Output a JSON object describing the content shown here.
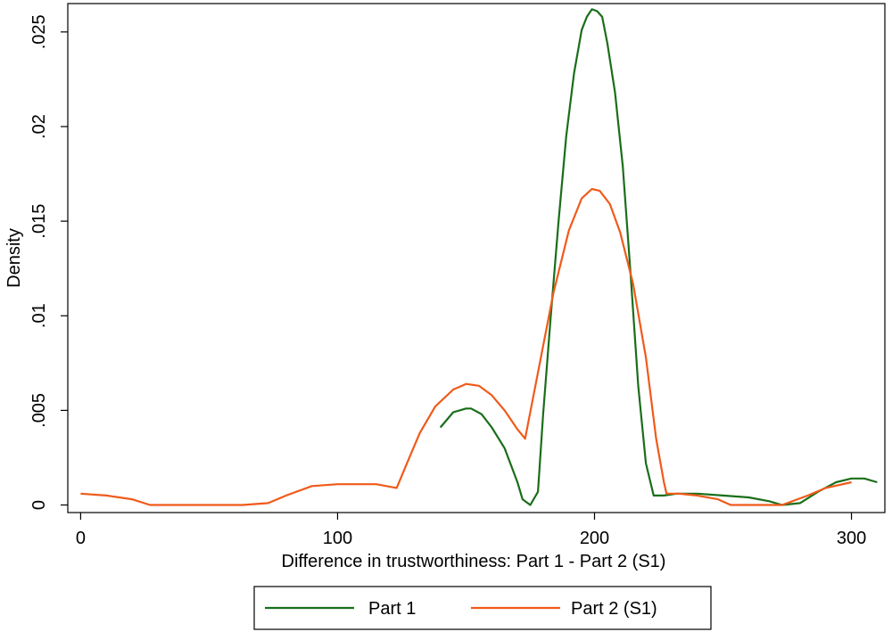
{
  "chart_data": {
    "type": "line",
    "xlabel": "Difference in trustworthiness: Part 1 - Part 2 (S1)",
    "ylabel": "Density",
    "xlim": [
      -5,
      313
    ],
    "ylim": [
      -0.0004,
      0.0265
    ],
    "x_ticks": [
      0,
      100,
      200,
      300
    ],
    "x_tick_labels": [
      "0",
      "100",
      "200",
      "300"
    ],
    "y_ticks": [
      0,
      0.005,
      0.01,
      0.015,
      0.02,
      0.025
    ],
    "y_tick_labels": [
      "0",
      ".005",
      ".01",
      ".015",
      ".02",
      ".025"
    ],
    "grid": false,
    "legend_position": "bottom",
    "series": [
      {
        "name": "Part 1",
        "color": "#1a6e1a",
        "x": [
          140,
          145,
          150,
          152,
          156,
          160,
          165,
          170,
          172,
          175,
          178,
          180,
          183,
          186,
          189,
          192,
          195,
          197,
          199,
          201,
          203,
          205,
          208,
          211,
          214,
          217,
          220,
          223,
          227,
          232,
          240,
          250,
          260,
          268,
          273,
          280,
          287,
          294,
          300,
          305,
          310
        ],
        "y": [
          0.0041,
          0.0049,
          0.0051,
          0.0051,
          0.0048,
          0.0041,
          0.003,
          0.0012,
          0.0003,
          0.0,
          0.0007,
          0.0048,
          0.01,
          0.015,
          0.0195,
          0.0228,
          0.0251,
          0.0258,
          0.0262,
          0.0261,
          0.0258,
          0.0244,
          0.0218,
          0.0179,
          0.0123,
          0.0063,
          0.0022,
          0.0005,
          0.0005,
          0.0006,
          0.0006,
          0.0005,
          0.0004,
          0.0002,
          0.0,
          0.0001,
          0.0007,
          0.0012,
          0.0014,
          0.0014,
          0.0012
        ]
      },
      {
        "name": "Part 2 (S1)",
        "color": "#f05a1a",
        "x": [
          0,
          10,
          20,
          27,
          35,
          45,
          55,
          63,
          73,
          80,
          90,
          100,
          105,
          110,
          115,
          123,
          127,
          132,
          138,
          145,
          150,
          155,
          160,
          165,
          170,
          173,
          178,
          184,
          190,
          195,
          199,
          202,
          206,
          210,
          215,
          220,
          224,
          227,
          228,
          233,
          240,
          248,
          253,
          260,
          273,
          283,
          290,
          300
        ],
        "y": [
          0.0006,
          0.0005,
          0.0003,
          0.0,
          0.0,
          0.0,
          0.0,
          0.0,
          0.0001,
          0.0005,
          0.001,
          0.0011,
          0.0011,
          0.0011,
          0.0011,
          0.0009,
          0.0022,
          0.0038,
          0.0052,
          0.0061,
          0.0064,
          0.0063,
          0.0058,
          0.005,
          0.004,
          0.0035,
          0.007,
          0.0112,
          0.0145,
          0.0162,
          0.0167,
          0.0166,
          0.0159,
          0.0144,
          0.0117,
          0.0078,
          0.0035,
          0.0012,
          0.0006,
          0.0006,
          0.0005,
          0.0003,
          0.0,
          0.0,
          0.0,
          0.0005,
          0.0009,
          0.0012
        ]
      }
    ]
  }
}
